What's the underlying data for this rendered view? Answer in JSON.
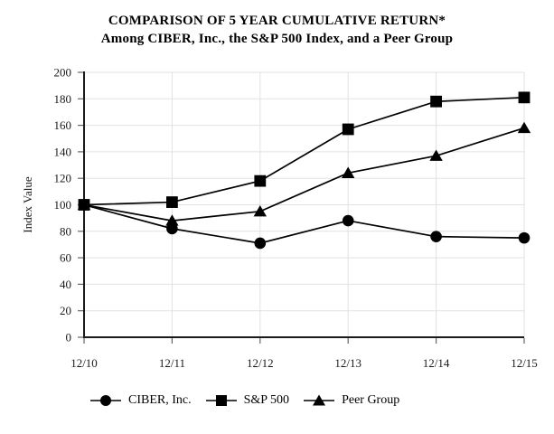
{
  "title": {
    "line1": "COMPARISON OF 5 YEAR CUMULATIVE RETURN*",
    "line2": "Among CIBER, Inc., the S&P 500 Index, and a Peer Group"
  },
  "chart_data": {
    "type": "line",
    "title": "COMPARISON OF 5 YEAR CUMULATIVE RETURN* Among CIBER, Inc., the S&P 500 Index, and a Peer Group",
    "categories": [
      "12/10",
      "12/11",
      "12/12",
      "12/13",
      "12/14",
      "12/15"
    ],
    "series": [
      {
        "name": "CIBER, Inc.",
        "marker": "circle",
        "values": [
          100,
          82,
          71,
          88,
          76,
          75
        ]
      },
      {
        "name": "S&P 500",
        "marker": "square",
        "values": [
          100,
          102,
          118,
          157,
          178,
          181
        ]
      },
      {
        "name": "Peer Group",
        "marker": "triangle",
        "values": [
          100,
          88,
          95,
          124,
          137,
          158
        ]
      }
    ],
    "xlabel": "",
    "ylabel": "Index Value",
    "ylim": [
      0,
      200
    ],
    "yticks": [
      0,
      20,
      40,
      60,
      80,
      100,
      120,
      140,
      160,
      180,
      200
    ],
    "grid": true,
    "legend_position": "bottom",
    "line_color": "#000000",
    "axis_color": "#1a1a1a",
    "tick_color": "#666666",
    "grid_color": "#e2e2e2",
    "marker_draw_order": [
      0,
      2,
      1
    ]
  }
}
